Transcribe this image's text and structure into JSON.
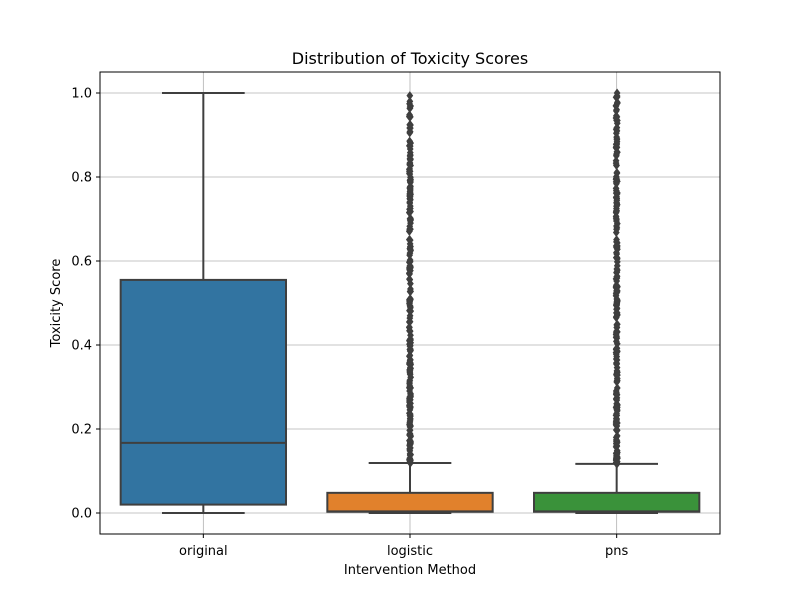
{
  "chart_data": {
    "type": "box",
    "title": "Distribution of Toxicity Scores",
    "xlabel": "Intervention Method",
    "ylabel": "Toxicity Score",
    "ylim": [
      -0.05,
      1.05
    ],
    "yticks": [
      "0.0",
      "0.2",
      "0.4",
      "0.6",
      "0.8",
      "1.0"
    ],
    "grid": true,
    "categories": [
      "original",
      "logistic",
      "pns"
    ],
    "boxes": [
      {
        "category": "original",
        "color": "#3274a1",
        "whisker_low": 0.0,
        "q1": 0.02,
        "median": 0.167,
        "q3": 0.555,
        "whisker_high": 1.0,
        "outliers": []
      },
      {
        "category": "logistic",
        "color": "#e1812c",
        "whisker_low": 0.0,
        "q1": 0.003,
        "median": 0.004,
        "q3": 0.048,
        "whisker_high": 0.119,
        "outlier_range": [
          0.119,
          1.0
        ]
      },
      {
        "category": "pns",
        "color": "#3a923a",
        "whisker_low": 0.0,
        "q1": 0.003,
        "median": 0.004,
        "q3": 0.048,
        "whisker_high": 0.117,
        "outlier_range": [
          0.117,
          1.0
        ]
      }
    ]
  }
}
